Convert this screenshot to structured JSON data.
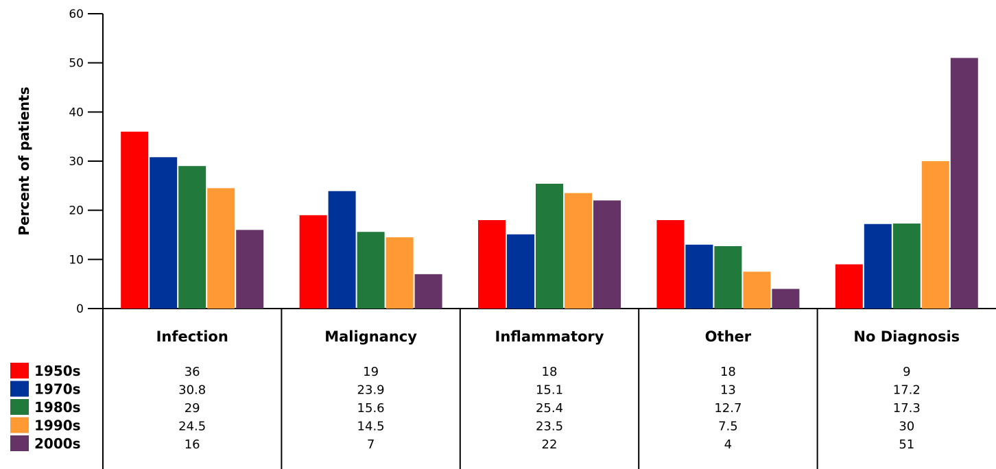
{
  "chart_data": {
    "type": "bar",
    "title": "",
    "xlabel": "",
    "ylabel": "Percent of patients",
    "ylim": [
      0,
      60
    ],
    "yticks": [
      0,
      10,
      20,
      30,
      40,
      50,
      60
    ],
    "grid": false,
    "legend": "bottom-left table",
    "categories": [
      "Infection",
      "Malignancy",
      "Inflammatory",
      "Other",
      "No Diagnosis"
    ],
    "series": [
      {
        "name": "1950s",
        "color": "#ff0000",
        "values": [
          36,
          19,
          18,
          18,
          9
        ],
        "labels": [
          "36",
          "19",
          "18",
          "18",
          "9"
        ]
      },
      {
        "name": "1970s",
        "color": "#003399",
        "values": [
          30.8,
          23.9,
          15.1,
          13,
          17.2
        ],
        "labels": [
          "30.8",
          "23.9",
          "15.1",
          "13",
          "17.2"
        ]
      },
      {
        "name": "1980s",
        "color": "#217a3c",
        "values": [
          29,
          15.6,
          25.4,
          12.7,
          17.3
        ],
        "labels": [
          "29",
          "15.6",
          "25.4",
          "12.7",
          "17.3"
        ]
      },
      {
        "name": "1990s",
        "color": "#ff9933",
        "values": [
          24.5,
          14.5,
          23.5,
          7.5,
          30
        ],
        "labels": [
          "24.5",
          "14.5",
          "23.5",
          "7.5",
          "30"
        ]
      },
      {
        "name": "2000s",
        "color": "#663366",
        "values": [
          16,
          7,
          22,
          4,
          51
        ],
        "labels": [
          "16",
          "7",
          "22",
          "4",
          "51"
        ]
      }
    ]
  }
}
